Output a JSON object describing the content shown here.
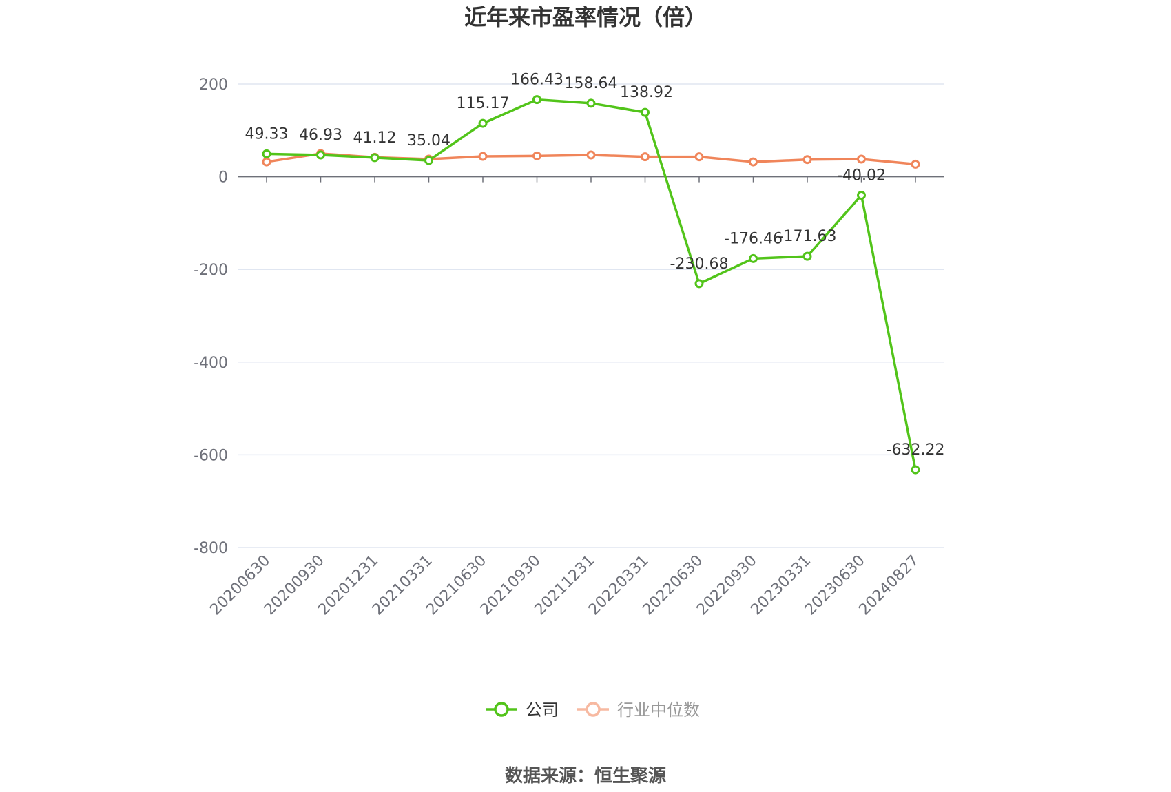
{
  "title": "近年来市盈率情况（倍）",
  "source": "数据来源：恒生聚源",
  "chart_data": {
    "type": "line",
    "title": "近年来市盈率情况（倍）",
    "categories": [
      "20200630",
      "20200930",
      "20201231",
      "20210331",
      "20210630",
      "20210930",
      "20211231",
      "20220331",
      "20220630",
      "20220930",
      "20230331",
      "20230630",
      "20240827"
    ],
    "ylim": [
      -800,
      200
    ],
    "yticks": [
      200,
      0,
      -200,
      -400,
      -600,
      -800
    ],
    "grid": true,
    "legend_position": "bottom",
    "series": [
      {
        "name": "公司",
        "color": "#52c41a",
        "values": [
          49.33,
          46.93,
          41.12,
          35.04,
          115.17,
          166.43,
          158.64,
          138.92,
          -230.68,
          -176.46,
          -171.63,
          -40.02,
          -632.22
        ],
        "labels": [
          "49.33",
          "46.93",
          "41.12",
          "35.04",
          "115.17",
          "166.43",
          "158.64",
          "138.92",
          "-230.68",
          "-176.46",
          "-171.63",
          "-40.02",
          "-632.22"
        ]
      },
      {
        "name": "行业中位数",
        "color": "#f0855a",
        "values": [
          32,
          50,
          42,
          38,
          44,
          45,
          47,
          43,
          43,
          32,
          37,
          38,
          27
        ]
      }
    ]
  }
}
